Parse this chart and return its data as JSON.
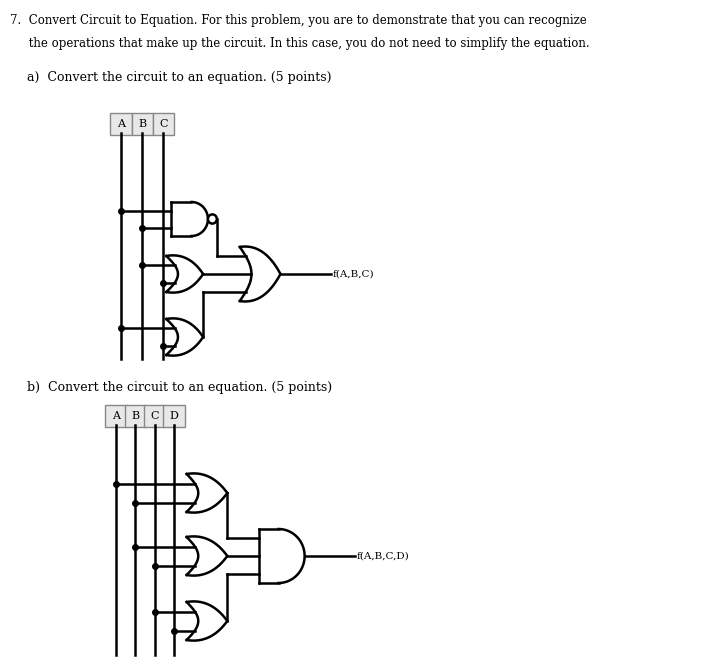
{
  "title_line1": "7.  Convert Circuit to Equation. For this problem, you are to demonstrate that you can recognize",
  "title_line2": "     the operations that make up the circuit. In this case, you do not need to simplify the equation.",
  "part_a_label": "a)  Convert the circuit to an equation. (5 points)",
  "part_b_label": "b)  Convert the circuit to an equation. (5 points)",
  "inputs_a": [
    "A",
    "B",
    "C"
  ],
  "inputs_b": [
    "A",
    "B",
    "C",
    "D"
  ],
  "output_a": "f(A,B,C)",
  "output_b": "f(A,B,C,D)",
  "bg_color": "#ffffff",
  "line_color": "#000000",
  "text_color": "#000000"
}
